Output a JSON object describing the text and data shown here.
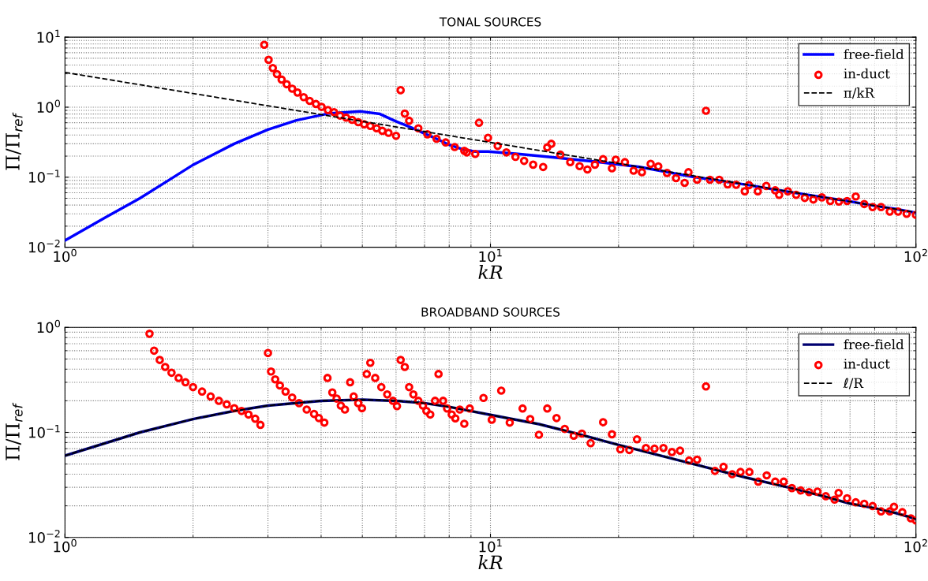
{
  "chart_data": [
    {
      "type": "line",
      "title": "TONAL SOURCES",
      "xlabel": "kR",
      "ylabel": "Π/Π$_{ref}$",
      "log": "xy",
      "grid": true,
      "legend": "top right",
      "xlim": [
        1,
        100
      ],
      "ylim": [
        0.01,
        10
      ],
      "xticks": [
        {
          "value": 1,
          "label": "10$^{0}$"
        },
        {
          "value": 10,
          "label": "10$^{1}$"
        },
        {
          "value": 100,
          "label": "10$^{2}$"
        }
      ],
      "yticks": [
        {
          "value": 0.01,
          "label": "10$^{−2}$"
        },
        {
          "value": 0.1,
          "label": "10$^{−1}$"
        },
        {
          "value": 1,
          "label": "10$^{0}$"
        },
        {
          "value": 10,
          "label": "10$^{1}$"
        }
      ],
      "series": [
        {
          "name": "free-field",
          "color": "#0000ff",
          "line_style": "solid",
          "x": [
            1,
            1.25,
            1.5,
            1.75,
            2,
            2.5,
            3,
            3.5,
            4.15,
            4.96,
            5.5,
            5.95,
            6.57,
            7,
            7.5,
            8,
            8.6,
            9.18,
            9.87,
            11.6,
            13.7,
            17.4,
            22.4,
            29.7,
            40,
            50,
            60,
            70,
            80,
            90,
            100
          ],
          "values": [
            0.0125,
            0.027,
            0.05,
            0.09,
            0.15,
            0.3,
            0.48,
            0.65,
            0.81,
            0.87,
            0.8,
            0.64,
            0.5,
            0.42,
            0.35,
            0.29,
            0.25,
            0.233,
            0.233,
            0.215,
            0.195,
            0.168,
            0.14,
            0.102,
            0.078,
            0.062,
            0.052,
            0.045,
            0.039,
            0.035,
            0.031
          ]
        },
        {
          "name": "in-duct",
          "type": "scatter",
          "color": "#ff0000",
          "marker": "circle",
          "x": [
            2.94,
            3.01,
            3.08,
            3.15,
            3.23,
            3.32,
            3.42,
            3.52,
            3.64,
            3.76,
            3.89,
            4.01,
            4.15,
            4.29,
            4.43,
            4.58,
            4.73,
            4.89,
            5.05,
            5.22,
            5.4,
            5.57,
            5.76,
            6.0,
            6.15,
            6.29,
            6.44,
            6.77,
            7.11,
            7.47,
            7.85,
            8.24,
            8.68,
            8.8,
            9.21,
            9.4,
            9.87,
            10.4,
            10.9,
            11.45,
            12.0,
            12.6,
            13.3,
            13.6,
            13.9,
            14.6,
            15.4,
            16.2,
            16.9,
            17.6,
            18.4,
            19.3,
            19.7,
            20.7,
            21.7,
            22.7,
            23.8,
            24.8,
            26.0,
            27.3,
            28.6,
            29.2,
            30.6,
            32.1,
            32.8,
            34.5,
            36.1,
            37.8,
            39.6,
            40.5,
            42.5,
            44.5,
            46.7,
            47.7,
            50.0,
            52.3,
            54.8,
            57.4,
            60.1,
            62.9,
            65.9,
            68.9,
            72.2,
            75.6,
            79.1,
            82.8,
            86.8,
            90.8,
            95.1,
            100
          ],
          "values": [
            7.8,
            4.75,
            3.62,
            2.97,
            2.48,
            2.13,
            1.84,
            1.62,
            1.39,
            1.23,
            1.11,
            1.01,
            0.91,
            0.85,
            0.76,
            0.71,
            0.66,
            0.61,
            0.57,
            0.54,
            0.5,
            0.46,
            0.43,
            0.39,
            1.75,
            0.81,
            0.64,
            0.5,
            0.41,
            0.354,
            0.314,
            0.27,
            0.238,
            0.226,
            0.215,
            0.6,
            0.365,
            0.28,
            0.226,
            0.195,
            0.171,
            0.151,
            0.14,
            0.267,
            0.3,
            0.21,
            0.164,
            0.144,
            0.129,
            0.151,
            0.181,
            0.134,
            0.178,
            0.164,
            0.124,
            0.118,
            0.155,
            0.143,
            0.115,
            0.097,
            0.083,
            0.118,
            0.092,
            0.89,
            0.092,
            0.092,
            0.079,
            0.078,
            0.063,
            0.077,
            0.063,
            0.075,
            0.065,
            0.056,
            0.063,
            0.056,
            0.0506,
            0.048,
            0.0515,
            0.0457,
            0.0448,
            0.0457,
            0.053,
            0.0414,
            0.0375,
            0.0375,
            0.0323,
            0.0323,
            0.03,
            0.029
          ]
        },
        {
          "name": "π/kR",
          "color": "#000000",
          "line_style": "dashed",
          "x": [
            1,
            100
          ],
          "values": [
            3.14,
            0.0314
          ]
        }
      ]
    },
    {
      "type": "line",
      "title": "BROADBAND SOURCES",
      "xlabel": "kR",
      "ylabel": "Π/Π$_{ref}$",
      "log": "xy",
      "grid": true,
      "legend": "top right",
      "xlim": [
        1,
        100
      ],
      "ylim": [
        0.01,
        1
      ],
      "xticks": [
        {
          "value": 1,
          "label": "10$^{0}$"
        },
        {
          "value": 10,
          "label": "10$^{1}$"
        },
        {
          "value": 100,
          "label": "10$^{2}$"
        }
      ],
      "yticks": [
        {
          "value": 0.01,
          "label": "10$^{−2}$"
        },
        {
          "value": 0.1,
          "label": "10$^{−1}$"
        },
        {
          "value": 1,
          "label": "10$^{0}$"
        }
      ],
      "series": [
        {
          "name": "free-field",
          "color": "#000070",
          "line_style": "solid",
          "x": [
            1,
            1.5,
            2,
            2.5,
            3,
            4,
            5,
            6,
            7,
            8,
            10,
            13,
            16,
            20,
            30,
            40,
            50,
            60,
            70,
            80,
            90,
            100
          ],
          "values": [
            0.06,
            0.1,
            0.134,
            0.16,
            0.18,
            0.2,
            0.205,
            0.2,
            0.19,
            0.175,
            0.147,
            0.12,
            0.097,
            0.076,
            0.05,
            0.037,
            0.03,
            0.025,
            0.021,
            0.019,
            0.017,
            0.015
          ]
        },
        {
          "name": "in-duct",
          "type": "scatter",
          "color": "#ff0000",
          "marker": "circle",
          "x": [
            1.58,
            1.62,
            1.67,
            1.72,
            1.78,
            1.85,
            1.92,
            2.0,
            2.1,
            2.2,
            2.3,
            2.4,
            2.5,
            2.6,
            2.7,
            2.8,
            2.88,
            3.0,
            3.05,
            3.12,
            3.2,
            3.3,
            3.42,
            3.55,
            3.7,
            3.85,
            3.95,
            4.07,
            4.14,
            4.25,
            4.35,
            4.45,
            4.55,
            4.68,
            4.77,
            4.89,
            4.99,
            5.12,
            5.22,
            5.36,
            5.54,
            5.72,
            5.9,
            6.03,
            6.15,
            6.29,
            6.44,
            6.59,
            6.77,
            6.94,
            7.07,
            7.22,
            7.41,
            7.55,
            7.74,
            7.91,
            8.11,
            8.27,
            8.47,
            8.68,
            8.94,
            9.63,
            10.07,
            10.6,
            11.1,
            11.9,
            12.4,
            13.0,
            13.6,
            14.3,
            14.95,
            15.7,
            16.4,
            17.2,
            18.4,
            19.3,
            20.2,
            21.2,
            22.1,
            23.2,
            24.3,
            25.5,
            26.7,
            27.9,
            29.3,
            30.6,
            32.1,
            33.7,
            35.3,
            37.0,
            38.7,
            40.6,
            42.6,
            44.6,
            46.7,
            48.9,
            51.1,
            53.6,
            56.1,
            58.7,
            61.4,
            64.4,
            65.8,
            68.9,
            72.2,
            75.6,
            79.1,
            82.8,
            86.8,
            88.8,
            92.9,
            97.3,
            100
          ],
          "values": [
            0.87,
            0.6,
            0.49,
            0.42,
            0.37,
            0.33,
            0.3,
            0.27,
            0.245,
            0.22,
            0.2,
            0.185,
            0.17,
            0.16,
            0.148,
            0.135,
            0.118,
            0.57,
            0.38,
            0.32,
            0.28,
            0.245,
            0.215,
            0.19,
            0.165,
            0.15,
            0.137,
            0.124,
            0.33,
            0.24,
            0.21,
            0.18,
            0.165,
            0.3,
            0.22,
            0.19,
            0.17,
            0.36,
            0.46,
            0.33,
            0.27,
            0.23,
            0.2,
            0.178,
            0.49,
            0.42,
            0.27,
            0.23,
            0.2,
            0.18,
            0.16,
            0.148,
            0.2,
            0.36,
            0.2,
            0.169,
            0.148,
            0.136,
            0.165,
            0.121,
            0.169,
            0.213,
            0.132,
            0.25,
            0.124,
            0.169,
            0.134,
            0.095,
            0.169,
            0.137,
            0.108,
            0.093,
            0.0975,
            0.079,
            0.125,
            0.096,
            0.069,
            0.068,
            0.086,
            0.071,
            0.07,
            0.071,
            0.065,
            0.067,
            0.054,
            0.055,
            0.274,
            0.043,
            0.047,
            0.04,
            0.042,
            0.042,
            0.034,
            0.039,
            0.034,
            0.034,
            0.0295,
            0.028,
            0.027,
            0.0273,
            0.0247,
            0.0229,
            0.0265,
            0.0236,
            0.0216,
            0.0209,
            0.0199,
            0.0177,
            0.0177,
            0.0196,
            0.0174,
            0.0152,
            0.0145
          ]
        },
        {
          "name": "ℓ/R",
          "color": "#000000",
          "line_style": "dashed",
          "x": [
            1,
            1.5,
            2,
            2.5,
            3,
            4,
            5,
            6,
            7,
            8,
            10,
            13,
            16,
            20,
            30,
            40,
            50,
            60,
            70,
            80,
            90,
            100
          ],
          "values": [
            0.06,
            0.1,
            0.134,
            0.16,
            0.18,
            0.2,
            0.205,
            0.2,
            0.19,
            0.175,
            0.147,
            0.12,
            0.097,
            0.076,
            0.05,
            0.037,
            0.03,
            0.025,
            0.021,
            0.019,
            0.017,
            0.015
          ]
        }
      ]
    }
  ]
}
